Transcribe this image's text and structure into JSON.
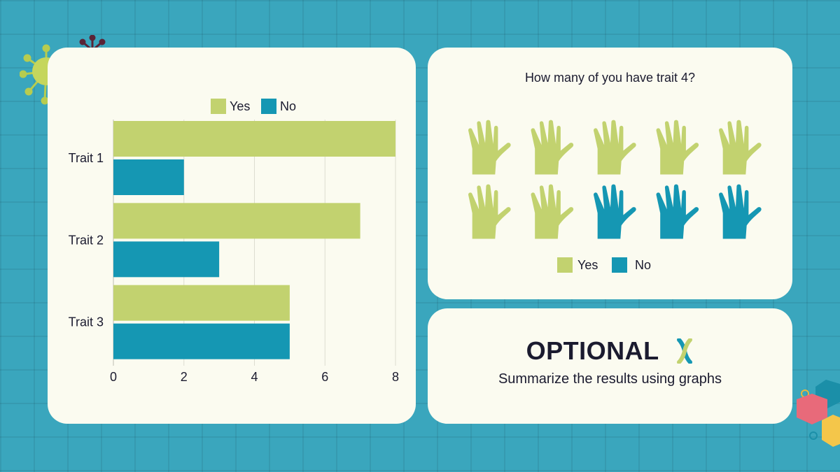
{
  "colors": {
    "yes": "#c2d26f",
    "no": "#1597b3",
    "background": "#3aa6bd",
    "card": "#fbfbf0",
    "text": "#1b1b2f"
  },
  "bar_chart": {
    "legend": {
      "yes": "Yes",
      "no": "No"
    }
  },
  "hands_panel": {
    "question": "How many of you have trait 4?",
    "legend": {
      "yes": "Yes",
      "no": "No"
    },
    "hands": [
      "yes",
      "yes",
      "yes",
      "yes",
      "yes",
      "yes",
      "yes",
      "no",
      "no",
      "no"
    ]
  },
  "optional": {
    "title": "OPTIONAL",
    "subtitle": "Summarize the results using graphs",
    "icon": "chromosome-icon"
  },
  "chart_data": [
    {
      "type": "bar",
      "orientation": "horizontal",
      "categories": [
        "Trait 1",
        "Trait 2",
        "Trait 3"
      ],
      "series": [
        {
          "name": "Yes",
          "values": [
            8,
            7,
            5
          ]
        },
        {
          "name": "No",
          "values": [
            2,
            3,
            5
          ]
        }
      ],
      "xlim": [
        0,
        8
      ],
      "xticks": [
        0,
        2,
        4,
        6,
        8
      ],
      "legend": "top",
      "grid": true
    },
    {
      "type": "pictograph",
      "question": "How many of you have trait 4?",
      "series": [
        {
          "name": "Yes",
          "values": [
            7
          ]
        },
        {
          "name": "No",
          "values": [
            3
          ]
        }
      ]
    }
  ]
}
